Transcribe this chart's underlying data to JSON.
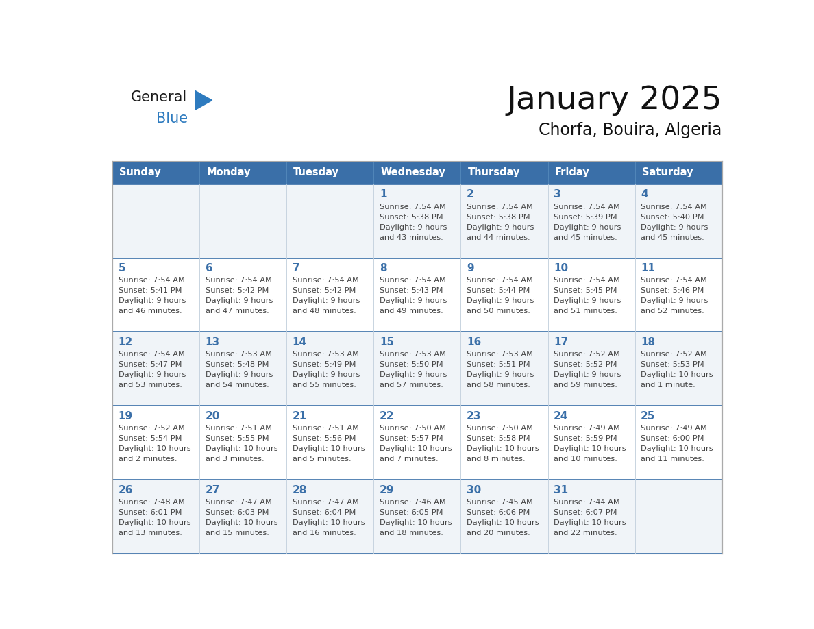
{
  "title": "January 2025",
  "subtitle": "Chorfa, Bouira, Algeria",
  "days_of_week": [
    "Sunday",
    "Monday",
    "Tuesday",
    "Wednesday",
    "Thursday",
    "Friday",
    "Saturday"
  ],
  "header_bg": "#3a6fa8",
  "header_text": "#FFFFFF",
  "row_bg_odd": "#f0f4f8",
  "row_bg_even": "#FFFFFF",
  "cell_border_color": "#3a6fa8",
  "cell_border_light": "#c8d4e0",
  "day_number_color": "#3a6fa8",
  "text_color": "#444444",
  "logo_general_color": "#1a1a1a",
  "logo_blue_color": "#2e7bbf",
  "calendar_data": [
    [
      {
        "day": null,
        "sunrise": null,
        "sunset": null,
        "daylight_line1": null,
        "daylight_line2": null
      },
      {
        "day": null,
        "sunrise": null,
        "sunset": null,
        "daylight_line1": null,
        "daylight_line2": null
      },
      {
        "day": null,
        "sunrise": null,
        "sunset": null,
        "daylight_line1": null,
        "daylight_line2": null
      },
      {
        "day": 1,
        "sunrise": "7:54 AM",
        "sunset": "5:38 PM",
        "daylight_line1": "Daylight: 9 hours",
        "daylight_line2": "and 43 minutes."
      },
      {
        "day": 2,
        "sunrise": "7:54 AM",
        "sunset": "5:38 PM",
        "daylight_line1": "Daylight: 9 hours",
        "daylight_line2": "and 44 minutes."
      },
      {
        "day": 3,
        "sunrise": "7:54 AM",
        "sunset": "5:39 PM",
        "daylight_line1": "Daylight: 9 hours",
        "daylight_line2": "and 45 minutes."
      },
      {
        "day": 4,
        "sunrise": "7:54 AM",
        "sunset": "5:40 PM",
        "daylight_line1": "Daylight: 9 hours",
        "daylight_line2": "and 45 minutes."
      }
    ],
    [
      {
        "day": 5,
        "sunrise": "7:54 AM",
        "sunset": "5:41 PM",
        "daylight_line1": "Daylight: 9 hours",
        "daylight_line2": "and 46 minutes."
      },
      {
        "day": 6,
        "sunrise": "7:54 AM",
        "sunset": "5:42 PM",
        "daylight_line1": "Daylight: 9 hours",
        "daylight_line2": "and 47 minutes."
      },
      {
        "day": 7,
        "sunrise": "7:54 AM",
        "sunset": "5:42 PM",
        "daylight_line1": "Daylight: 9 hours",
        "daylight_line2": "and 48 minutes."
      },
      {
        "day": 8,
        "sunrise": "7:54 AM",
        "sunset": "5:43 PM",
        "daylight_line1": "Daylight: 9 hours",
        "daylight_line2": "and 49 minutes."
      },
      {
        "day": 9,
        "sunrise": "7:54 AM",
        "sunset": "5:44 PM",
        "daylight_line1": "Daylight: 9 hours",
        "daylight_line2": "and 50 minutes."
      },
      {
        "day": 10,
        "sunrise": "7:54 AM",
        "sunset": "5:45 PM",
        "daylight_line1": "Daylight: 9 hours",
        "daylight_line2": "and 51 minutes."
      },
      {
        "day": 11,
        "sunrise": "7:54 AM",
        "sunset": "5:46 PM",
        "daylight_line1": "Daylight: 9 hours",
        "daylight_line2": "and 52 minutes."
      }
    ],
    [
      {
        "day": 12,
        "sunrise": "7:54 AM",
        "sunset": "5:47 PM",
        "daylight_line1": "Daylight: 9 hours",
        "daylight_line2": "and 53 minutes."
      },
      {
        "day": 13,
        "sunrise": "7:53 AM",
        "sunset": "5:48 PM",
        "daylight_line1": "Daylight: 9 hours",
        "daylight_line2": "and 54 minutes."
      },
      {
        "day": 14,
        "sunrise": "7:53 AM",
        "sunset": "5:49 PM",
        "daylight_line1": "Daylight: 9 hours",
        "daylight_line2": "and 55 minutes."
      },
      {
        "day": 15,
        "sunrise": "7:53 AM",
        "sunset": "5:50 PM",
        "daylight_line1": "Daylight: 9 hours",
        "daylight_line2": "and 57 minutes."
      },
      {
        "day": 16,
        "sunrise": "7:53 AM",
        "sunset": "5:51 PM",
        "daylight_line1": "Daylight: 9 hours",
        "daylight_line2": "and 58 minutes."
      },
      {
        "day": 17,
        "sunrise": "7:52 AM",
        "sunset": "5:52 PM",
        "daylight_line1": "Daylight: 9 hours",
        "daylight_line2": "and 59 minutes."
      },
      {
        "day": 18,
        "sunrise": "7:52 AM",
        "sunset": "5:53 PM",
        "daylight_line1": "Daylight: 10 hours",
        "daylight_line2": "and 1 minute."
      }
    ],
    [
      {
        "day": 19,
        "sunrise": "7:52 AM",
        "sunset": "5:54 PM",
        "daylight_line1": "Daylight: 10 hours",
        "daylight_line2": "and 2 minutes."
      },
      {
        "day": 20,
        "sunrise": "7:51 AM",
        "sunset": "5:55 PM",
        "daylight_line1": "Daylight: 10 hours",
        "daylight_line2": "and 3 minutes."
      },
      {
        "day": 21,
        "sunrise": "7:51 AM",
        "sunset": "5:56 PM",
        "daylight_line1": "Daylight: 10 hours",
        "daylight_line2": "and 5 minutes."
      },
      {
        "day": 22,
        "sunrise": "7:50 AM",
        "sunset": "5:57 PM",
        "daylight_line1": "Daylight: 10 hours",
        "daylight_line2": "and 7 minutes."
      },
      {
        "day": 23,
        "sunrise": "7:50 AM",
        "sunset": "5:58 PM",
        "daylight_line1": "Daylight: 10 hours",
        "daylight_line2": "and 8 minutes."
      },
      {
        "day": 24,
        "sunrise": "7:49 AM",
        "sunset": "5:59 PM",
        "daylight_line1": "Daylight: 10 hours",
        "daylight_line2": "and 10 minutes."
      },
      {
        "day": 25,
        "sunrise": "7:49 AM",
        "sunset": "6:00 PM",
        "daylight_line1": "Daylight: 10 hours",
        "daylight_line2": "and 11 minutes."
      }
    ],
    [
      {
        "day": 26,
        "sunrise": "7:48 AM",
        "sunset": "6:01 PM",
        "daylight_line1": "Daylight: 10 hours",
        "daylight_line2": "and 13 minutes."
      },
      {
        "day": 27,
        "sunrise": "7:47 AM",
        "sunset": "6:03 PM",
        "daylight_line1": "Daylight: 10 hours",
        "daylight_line2": "and 15 minutes."
      },
      {
        "day": 28,
        "sunrise": "7:47 AM",
        "sunset": "6:04 PM",
        "daylight_line1": "Daylight: 10 hours",
        "daylight_line2": "and 16 minutes."
      },
      {
        "day": 29,
        "sunrise": "7:46 AM",
        "sunset": "6:05 PM",
        "daylight_line1": "Daylight: 10 hours",
        "daylight_line2": "and 18 minutes."
      },
      {
        "day": 30,
        "sunrise": "7:45 AM",
        "sunset": "6:06 PM",
        "daylight_line1": "Daylight: 10 hours",
        "daylight_line2": "and 20 minutes."
      },
      {
        "day": 31,
        "sunrise": "7:44 AM",
        "sunset": "6:07 PM",
        "daylight_line1": "Daylight: 10 hours",
        "daylight_line2": "and 22 minutes."
      },
      {
        "day": null,
        "sunrise": null,
        "sunset": null,
        "daylight_line1": null,
        "daylight_line2": null
      }
    ]
  ]
}
